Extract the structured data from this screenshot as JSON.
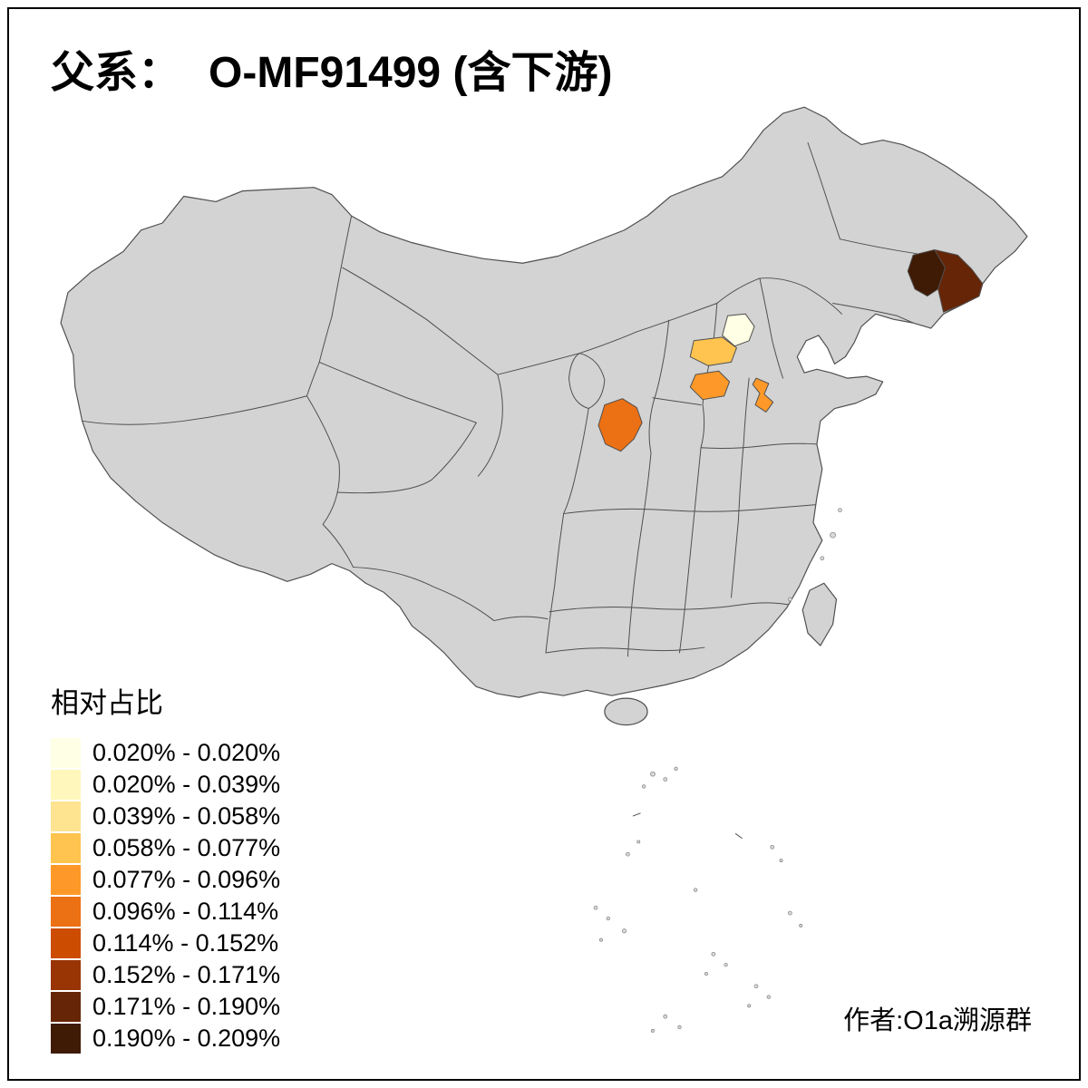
{
  "title": {
    "prefix": "父系：",
    "main": "O-MF91499 (含下游)"
  },
  "legend": {
    "title": "相对占比",
    "items": [
      {
        "label": "0.020% - 0.020%",
        "color": "#FFFFE5"
      },
      {
        "label": "0.020% - 0.039%",
        "color": "#FFF7BC"
      },
      {
        "label": "0.039% - 0.058%",
        "color": "#FEE391"
      },
      {
        "label": "0.058% - 0.077%",
        "color": "#FEC44F"
      },
      {
        "label": "0.077% - 0.096%",
        "color": "#FE9929"
      },
      {
        "label": "0.096% - 0.114%",
        "color": "#EC7014"
      },
      {
        "label": "0.114% - 0.152%",
        "color": "#CC4C02"
      },
      {
        "label": "0.152% - 0.171%",
        "color": "#993404"
      },
      {
        "label": "0.171% - 0.190%",
        "color": "#662506"
      },
      {
        "label": "0.190% - 0.209%",
        "color": "#3F1A04"
      }
    ]
  },
  "author": "作者:O1a溯源群",
  "map": {
    "land_color": "#D3D3D3",
    "border_color": "#4F4F4F",
    "background": "#FFFFFF",
    "highlights": [
      {
        "id": "northeast-west",
        "color": "#3F1A04",
        "bucket": "0.190% - 0.209%"
      },
      {
        "id": "northeast-east",
        "color": "#662506",
        "bucket": "0.171% - 0.190%"
      },
      {
        "id": "beijing-area",
        "color": "#FFFFE5",
        "bucket": "0.020% - 0.020%"
      },
      {
        "id": "hebei-west",
        "color": "#FEC44F",
        "bucket": "0.058% - 0.077%"
      },
      {
        "id": "shanxi-south",
        "color": "#FE9929",
        "bucket": "0.077% - 0.096%"
      },
      {
        "id": "shandong-west",
        "color": "#FE9929",
        "bucket": "0.077% - 0.096%"
      },
      {
        "id": "shaanxi-central",
        "color": "#EC7014",
        "bucket": "0.096% - 0.114%"
      }
    ]
  }
}
